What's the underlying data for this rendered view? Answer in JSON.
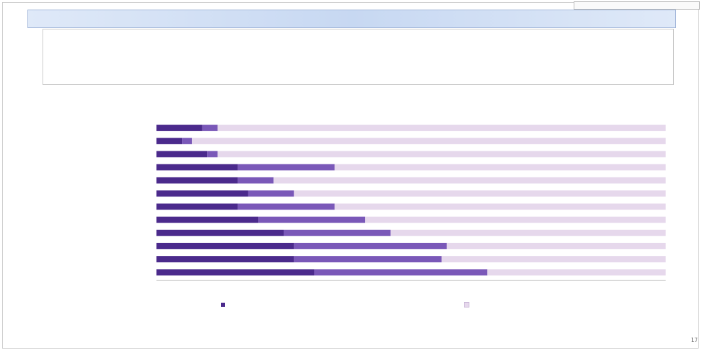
{
  "header": {
    "corner_box": "",
    "title": ""
  },
  "notes": {
    "lines": [
      "",
      "",
      "",
      "",
      "",
      "",
      ""
    ]
  },
  "source_lines": [
    "",
    ""
  ],
  "chart_data": {
    "type": "bar",
    "title": "",
    "unit_label": "",
    "categories": [
      "",
      "",
      "",
      "",
      "",
      "",
      "",
      "",
      "",
      "",
      "",
      ""
    ],
    "series": [
      {
        "values": [
          9,
          5,
          10,
          16,
          16,
          18,
          16,
          20,
          25,
          27,
          27,
          31
        ],
        "color": "#4b2a8c"
      },
      {
        "values": [
          3,
          2,
          2,
          19,
          7,
          9,
          19,
          21,
          21,
          30,
          29,
          34
        ],
        "color": "#7a58b8"
      },
      {
        "values": [
          88,
          93,
          88,
          65,
          77,
          73,
          65,
          59,
          54,
          43,
          44,
          35
        ],
        "color": "#e6d8ec"
      }
    ],
    "xlim": [
      0,
      100
    ],
    "xticks": [
      "",
      "",
      "",
      "",
      "",
      "",
      "",
      "",
      "",
      "",
      ""
    ],
    "legend": [
      "",
      ""
    ],
    "legend_position": "bottom"
  },
  "footnotes": [
    "",
    "",
    "",
    "",
    "",
    ""
  ],
  "page_number": "17"
}
